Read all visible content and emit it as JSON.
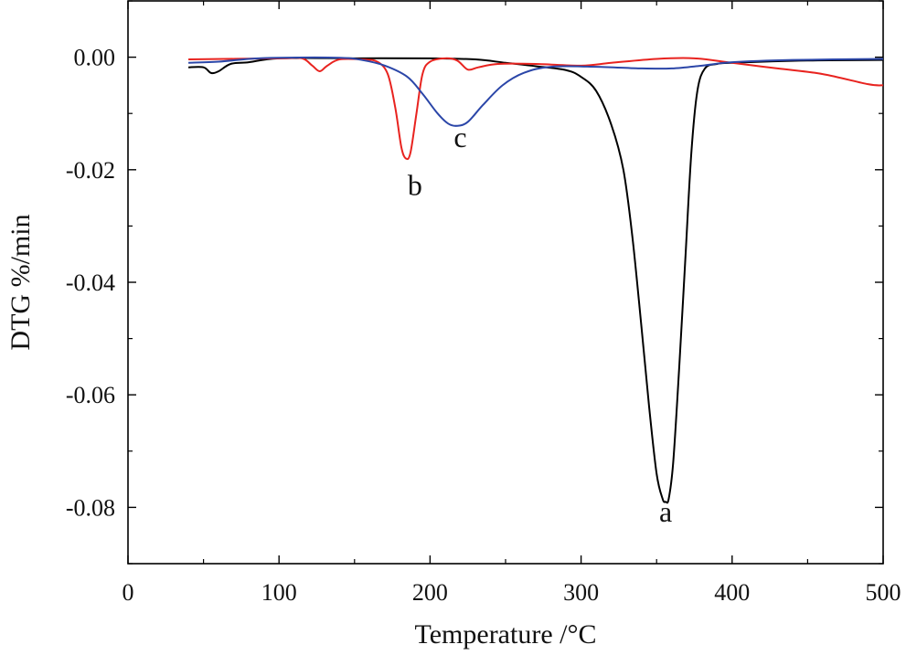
{
  "chart_data": {
    "type": "line",
    "xlabel": "Temperature /°C",
    "ylabel": "DTG %/min",
    "xlim": [
      0,
      500
    ],
    "ylim": [
      -0.09,
      0.01
    ],
    "x_ticks": [
      0,
      100,
      200,
      300,
      400,
      500
    ],
    "x_tick_labels": [
      "0",
      "100",
      "200",
      "300",
      "400",
      "500"
    ],
    "y_ticks": [
      0.0,
      -0.02,
      -0.04,
      -0.06,
      -0.08
    ],
    "y_tick_labels": [
      "0.00",
      "-0.02",
      "-0.04",
      "-0.06",
      "-0.08"
    ],
    "grid": false,
    "series": [
      {
        "name": "a",
        "label": "a",
        "color": "#000000",
        "label_at": [
          356,
          -0.0825
        ],
        "points": [
          [
            40,
            -0.0018
          ],
          [
            50,
            -0.0018
          ],
          [
            55,
            -0.0028
          ],
          [
            60,
            -0.0025
          ],
          [
            68,
            -0.0012
          ],
          [
            80,
            -0.0009
          ],
          [
            100,
            -0.0002
          ],
          [
            150,
            -0.0002
          ],
          [
            200,
            -0.0002
          ],
          [
            230,
            -0.0004
          ],
          [
            250,
            -0.001
          ],
          [
            270,
            -0.0016
          ],
          [
            290,
            -0.0023
          ],
          [
            300,
            -0.0035
          ],
          [
            310,
            -0.006
          ],
          [
            320,
            -0.012
          ],
          [
            328,
            -0.02
          ],
          [
            334,
            -0.032
          ],
          [
            340,
            -0.048
          ],
          [
            345,
            -0.062
          ],
          [
            350,
            -0.074
          ],
          [
            354,
            -0.0785
          ],
          [
            356,
            -0.079
          ],
          [
            358,
            -0.0785
          ],
          [
            361,
            -0.072
          ],
          [
            365,
            -0.055
          ],
          [
            369,
            -0.036
          ],
          [
            373,
            -0.017
          ],
          [
            377,
            -0.006
          ],
          [
            382,
            -0.002
          ],
          [
            390,
            -0.0012
          ],
          [
            400,
            -0.001
          ],
          [
            450,
            -0.0006
          ],
          [
            500,
            -0.0005
          ]
        ]
      },
      {
        "name": "b",
        "label": "b",
        "color": "#e8231f",
        "label_at": [
          190,
          -0.0245
        ],
        "points": [
          [
            40,
            -0.0004
          ],
          [
            100,
            -0.0002
          ],
          [
            115,
            -0.0002
          ],
          [
            122,
            -0.0015
          ],
          [
            127,
            -0.0025
          ],
          [
            132,
            -0.0015
          ],
          [
            140,
            -0.0004
          ],
          [
            155,
            -0.0004
          ],
          [
            165,
            -0.0008
          ],
          [
            172,
            -0.003
          ],
          [
            177,
            -0.009
          ],
          [
            181,
            -0.016
          ],
          [
            184,
            -0.018
          ],
          [
            187,
            -0.017
          ],
          [
            191,
            -0.01
          ],
          [
            195,
            -0.003
          ],
          [
            200,
            -0.0008
          ],
          [
            210,
            -0.0002
          ],
          [
            218,
            -0.0006
          ],
          [
            225,
            -0.0022
          ],
          [
            232,
            -0.0018
          ],
          [
            245,
            -0.0012
          ],
          [
            270,
            -0.0012
          ],
          [
            300,
            -0.0015
          ],
          [
            320,
            -0.001
          ],
          [
            350,
            -0.0003
          ],
          [
            375,
            -0.0002
          ],
          [
            400,
            -0.001
          ],
          [
            430,
            -0.002
          ],
          [
            460,
            -0.003
          ],
          [
            490,
            -0.0048
          ],
          [
            500,
            -0.005
          ]
        ]
      },
      {
        "name": "c",
        "label": "c",
        "color": "#2b46a8",
        "label_at": [
          220,
          -0.016
        ],
        "points": [
          [
            40,
            -0.001
          ],
          [
            60,
            -0.0008
          ],
          [
            80,
            -0.0003
          ],
          [
            100,
            -0.0001
          ],
          [
            140,
            -0.0001
          ],
          [
            155,
            -0.0005
          ],
          [
            170,
            -0.0015
          ],
          [
            185,
            -0.0035
          ],
          [
            195,
            -0.0065
          ],
          [
            205,
            -0.01
          ],
          [
            212,
            -0.0118
          ],
          [
            218,
            -0.0122
          ],
          [
            225,
            -0.0115
          ],
          [
            235,
            -0.0085
          ],
          [
            248,
            -0.005
          ],
          [
            262,
            -0.0028
          ],
          [
            280,
            -0.0017
          ],
          [
            310,
            -0.0017
          ],
          [
            340,
            -0.002
          ],
          [
            360,
            -0.002
          ],
          [
            380,
            -0.0015
          ],
          [
            400,
            -0.0009
          ],
          [
            440,
            -0.0005
          ],
          [
            500,
            -0.0003
          ]
        ]
      }
    ]
  }
}
